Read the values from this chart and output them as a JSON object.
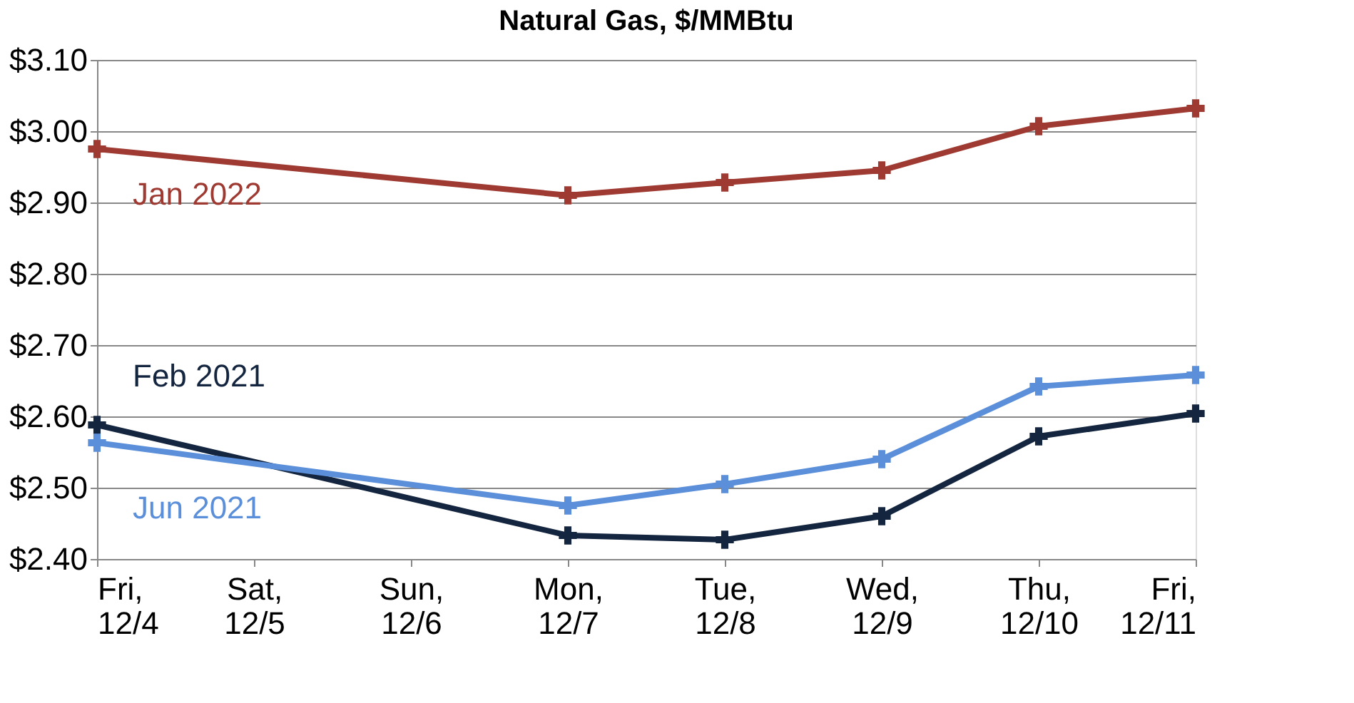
{
  "chart_data": {
    "type": "line",
    "title": "Natural Gas, $/MMBtu",
    "categories": [
      "Fri, 12/4",
      "Sat, 12/5",
      "Sun, 12/6",
      "Mon, 12/7",
      "Tue, 12/8",
      "Wed, 12/9",
      "Thu, 12/10",
      "Fri, 12/11"
    ],
    "series": [
      {
        "name": "Jan 2022",
        "color": "#9e3a32",
        "values": [
          2.975,
          null,
          null,
          2.91,
          2.928,
          2.945,
          3.007,
          3.032
        ]
      },
      {
        "name": "Feb 2021",
        "color": "#14253f",
        "values": [
          2.588,
          null,
          null,
          2.433,
          2.427,
          2.46,
          2.572,
          2.604
        ]
      },
      {
        "name": "Jun 2021",
        "color": "#5b8fd9",
        "values": [
          2.563,
          null,
          null,
          2.475,
          2.505,
          2.54,
          2.642,
          2.658
        ]
      }
    ],
    "ylim": [
      2.4,
      3.1
    ],
    "yticks": [
      {
        "value": 2.4,
        "label": "$2.40"
      },
      {
        "value": 2.5,
        "label": "$2.50"
      },
      {
        "value": 2.6,
        "label": "$2.60"
      },
      {
        "value": 2.7,
        "label": "$2.70"
      },
      {
        "value": 2.8,
        "label": "$2.80"
      },
      {
        "value": 2.9,
        "label": "$2.90"
      },
      {
        "value": 3.0,
        "label": "$3.00"
      },
      {
        "value": 3.1,
        "label": "$3.10"
      }
    ],
    "grid": "y",
    "legend": false,
    "marker": "cross",
    "line_style": "solid"
  }
}
